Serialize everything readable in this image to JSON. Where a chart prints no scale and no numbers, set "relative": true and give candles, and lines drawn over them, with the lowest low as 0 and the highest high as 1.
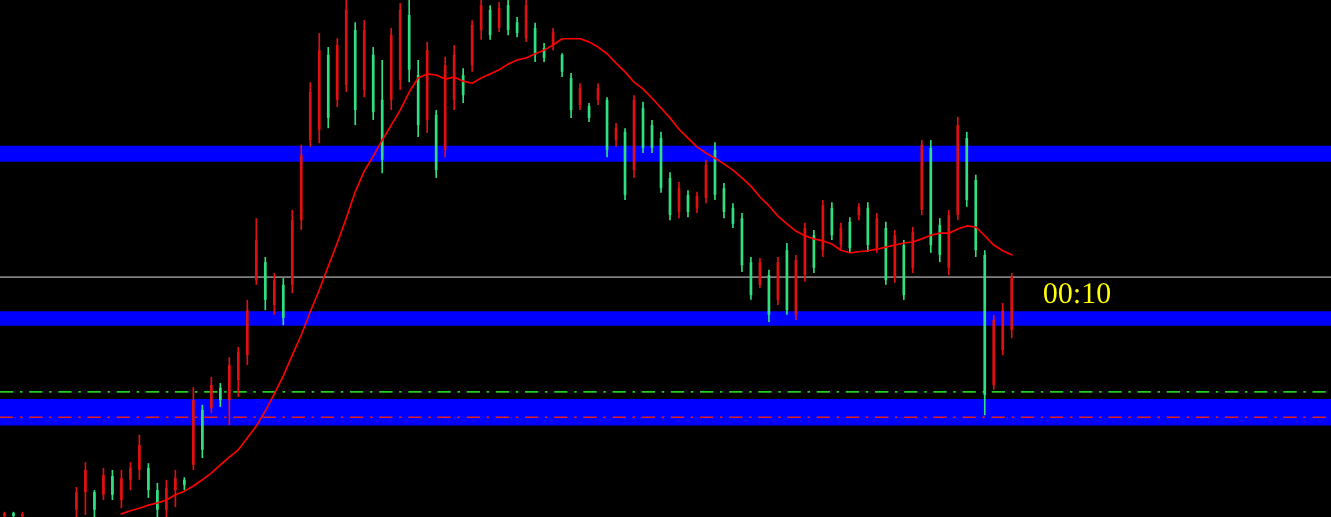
{
  "chart_data": {
    "type": "candlestick",
    "relative": true,
    "categories": [
      null,
      null,
      null,
      null,
      null,
      null,
      null,
      null,
      null,
      null,
      null,
      null,
      null,
      null,
      null,
      null,
      null,
      null,
      null,
      null,
      null,
      null,
      null,
      null,
      null,
      null,
      null,
      null,
      null,
      null,
      null,
      null,
      null,
      null,
      null,
      null,
      null,
      null,
      null,
      null,
      null,
      null,
      null,
      null,
      null,
      null,
      null,
      null,
      null,
      null,
      null,
      null,
      null,
      null,
      null,
      null,
      null,
      null,
      null,
      null,
      null,
      null,
      null,
      null,
      null,
      null,
      null,
      null,
      null,
      null,
      null,
      null,
      null,
      null,
      null,
      null,
      null,
      null,
      null,
      null,
      null,
      null,
      null,
      null,
      null,
      null,
      null,
      null,
      null,
      null,
      null,
      null,
      null,
      null,
      null,
      null,
      null,
      null,
      null,
      null,
      null,
      null,
      null,
      null,
      null,
      null,
      null,
      null,
      null,
      null,
      null,
      null,
      null,
      null,
      null,
      null,
      null,
      null,
      null,
      null,
      null,
      null,
      null,
      null,
      null,
      null,
      null,
      null,
      null,
      null,
      null,
      null,
      null,
      null,
      null,
      null,
      null,
      null,
      null,
      null,
      null,
      null,
      null,
      null,
      null,
      null,
      null,
      null
    ],
    "ohlc": [
      [
        0.002,
        0.01,
        0,
        0.008
      ],
      [
        0.008,
        0.01,
        0,
        0.002
      ],
      [
        0.002,
        0.01,
        0,
        0.006
      ],
      null,
      null,
      null,
      null,
      null,
      [
        0.014,
        0.058,
        0,
        0.048
      ],
      [
        0.048,
        0.106,
        0.004,
        0.091
      ],
      [
        0.048,
        0.052,
        0,
        0.014
      ],
      [
        0.043,
        0.095,
        0.033,
        0.081
      ],
      [
        0.079,
        0.091,
        0.033,
        0.043
      ],
      [
        0.033,
        0.091,
        0.017,
        0.075
      ],
      [
        0.072,
        0.106,
        0.052,
        0.095
      ],
      [
        0.091,
        0.159,
        0.072,
        0.139
      ],
      [
        0.095,
        0.104,
        0.037,
        0.052
      ],
      [
        0.052,
        0.066,
        0,
        0.014
      ],
      [
        0.014,
        0.072,
        0,
        0.056
      ],
      [
        0.052,
        0.091,
        0.019,
        0.075
      ],
      [
        0.072,
        0.077,
        0.052,
        0.062
      ],
      [
        0.101,
        0.251,
        0.091,
        0.226
      ],
      [
        0.207,
        0.217,
        0.114,
        0.13
      ],
      [
        0.211,
        0.271,
        0.201,
        0.255
      ],
      [
        0.25,
        0.259,
        0.213,
        0.226
      ],
      [
        0.226,
        0.309,
        0.178,
        0.294
      ],
      [
        0.265,
        0.329,
        0.232,
        0.319
      ],
      [
        0.313,
        0.42,
        0.294,
        0.4
      ],
      [
        0.458,
        0.578,
        0.449,
        0.536
      ],
      [
        0.493,
        0.503,
        0.4,
        0.42
      ],
      [
        0.41,
        0.472,
        0.391,
        0.458
      ],
      [
        0.449,
        0.462,
        0.371,
        0.385
      ],
      [
        0.449,
        0.594,
        0.433,
        0.574
      ],
      [
        0.574,
        0.72,
        0.555,
        0.7
      ],
      [
        0.729,
        0.841,
        0.716,
        0.822
      ],
      [
        0.749,
        0.936,
        0.723,
        0.903
      ],
      [
        0.894,
        0.909,
        0.752,
        0.772
      ],
      [
        0.807,
        0.926,
        0.793,
        0.913
      ],
      [
        0.836,
        1,
        0.822,
        0.981
      ],
      [
        0.942,
        0.957,
        0.758,
        0.787
      ],
      [
        0.826,
        0.961,
        0.812,
        0.942
      ],
      [
        0.894,
        0.909,
        0.768,
        0.783
      ],
      [
        0.807,
        0.884,
        0.665,
        0.691
      ],
      [
        0.807,
        0.946,
        0.787,
        0.932
      ],
      [
        0.845,
        0.994,
        0.826,
        0.981
      ],
      [
        0.971,
        1,
        0.841,
        0.865
      ],
      [
        0.855,
        0.884,
        0.735,
        0.758
      ],
      [
        0.768,
        0.919,
        0.743,
        0.903
      ],
      [
        0.778,
        0.787,
        0.656,
        0.671
      ],
      [
        0.71,
        0.89,
        0.696,
        0.874
      ],
      [
        0.807,
        0.913,
        0.787,
        0.894
      ],
      [
        0.855,
        0.868,
        0.801,
        0.816
      ],
      [
        0.874,
        0.961,
        0.861,
        0.952
      ],
      [
        0.942,
        1,
        0.923,
        0.99
      ],
      [
        0.981,
        0.99,
        0.923,
        0.932
      ],
      [
        0.946,
        0.996,
        0.938,
        0.985
      ],
      [
        0.99,
        1,
        0.932,
        0.942
      ],
      [
        0.957,
        0.967,
        0.928,
        0.936
      ],
      [
        0.926,
        1,
        0.919,
        0.99
      ],
      [
        0.946,
        0.956,
        0.88,
        0.894
      ],
      [
        0.907,
        0.917,
        0.88,
        0.888
      ],
      [
        0.913,
        0.946,
        0.903,
        0.938
      ],
      [
        0.894,
        0.897,
        0.851,
        0.861
      ],
      [
        0.849,
        0.859,
        0.772,
        0.787
      ],
      [
        0.797,
        0.839,
        0.787,
        0.83
      ],
      [
        0.795,
        0.801,
        0.764,
        0.772
      ],
      [
        0.807,
        0.839,
        0.797,
        0.83
      ],
      [
        0.807,
        0.812,
        0.696,
        0.71
      ],
      [
        0.729,
        0.762,
        0.716,
        0.752
      ],
      [
        0.745,
        0.752,
        0.613,
        0.623
      ],
      [
        0.671,
        0.816,
        0.656,
        0.807
      ],
      [
        0.791,
        0.803,
        0.704,
        0.714
      ],
      [
        0.758,
        0.768,
        0.704,
        0.714
      ],
      [
        0.733,
        0.745,
        0.627,
        0.636
      ],
      [
        0.656,
        0.667,
        0.574,
        0.584
      ],
      [
        0.59,
        0.648,
        0.578,
        0.636
      ],
      [
        0.623,
        0.632,
        0.58,
        0.59
      ],
      [
        0.598,
        0.629,
        0.588,
        0.621
      ],
      [
        0.617,
        0.691,
        0.607,
        0.681
      ],
      [
        0.71,
        0.725,
        0.613,
        0.623
      ],
      [
        0.636,
        0.646,
        0.578,
        0.59
      ],
      [
        0.598,
        0.607,
        0.559,
        0.567
      ],
      [
        0.578,
        0.588,
        0.474,
        0.487
      ],
      [
        0.493,
        0.503,
        0.42,
        0.429
      ],
      [
        0.449,
        0.501,
        0.443,
        0.493
      ],
      [
        0.468,
        0.478,
        0.377,
        0.391
      ],
      [
        0.42,
        0.503,
        0.41,
        0.493
      ],
      [
        0.516,
        0.53,
        0.391,
        0.4
      ],
      [
        0.391,
        0.507,
        0.381,
        0.497
      ],
      [
        0.468,
        0.569,
        0.455,
        0.559
      ],
      [
        0.545,
        0.555,
        0.472,
        0.482
      ],
      [
        0.516,
        0.613,
        0.503,
        0.603
      ],
      [
        0.598,
        0.609,
        0.536,
        0.545
      ],
      [
        0.526,
        0.569,
        0.516,
        0.559
      ],
      [
        0.571,
        0.58,
        0.511,
        0.52
      ],
      [
        0.584,
        0.607,
        0.574,
        0.6
      ],
      [
        0.598,
        0.609,
        0.513,
        0.526
      ],
      [
        0.52,
        0.588,
        0.511,
        0.578
      ],
      [
        0.559,
        0.571,
        0.449,
        0.458
      ],
      [
        0.462,
        0.555,
        0.453,
        0.545
      ],
      [
        0.526,
        0.536,
        0.42,
        0.429
      ],
      [
        0.482,
        0.561,
        0.472,
        0.551
      ],
      [
        0.594,
        0.729,
        0.584,
        0.72
      ],
      [
        0.714,
        0.729,
        0.511,
        0.526
      ],
      [
        0.565,
        0.578,
        0.493,
        0.507
      ],
      [
        0.482,
        0.594,
        0.468,
        0.584
      ],
      [
        0.584,
        0.774,
        0.574,
        0.758
      ],
      [
        0.733,
        0.745,
        0.6,
        0.613
      ],
      [
        0.652,
        0.662,
        0.503,
        0.516
      ],
      [
        0.507,
        0.516,
        0.197,
        0.236
      ],
      [
        0.255,
        0.391,
        0.246,
        0.381
      ],
      [
        0.323,
        0.414,
        0.313,
        0.4
      ],
      [
        0.362,
        0.472,
        0.346,
        0.464
      ],
      null,
      null,
      null,
      null,
      null,
      null,
      null,
      null,
      null,
      null,
      null,
      null,
      null,
      null,
      null,
      null,
      null,
      null,
      null,
      null,
      null,
      null,
      null,
      null,
      null,
      null,
      null,
      null,
      null,
      null,
      null,
      null,
      null,
      null,
      null
    ],
    "colors": [
      "#e01010",
      "#30e080",
      "#e01010",
      null,
      null,
      null,
      null,
      null,
      "#e01010",
      "#e01010",
      "#30e080",
      "#e01010",
      "#30e080",
      "#e01010",
      "#e01010",
      "#e01010",
      "#30e080",
      "#30e080",
      "#e01010",
      "#e01010",
      "#30e080",
      "#e01010",
      "#30e080",
      "#e01010",
      "#30e080",
      "#e01010",
      "#e01010",
      "#e01010",
      "#e01010",
      "#30e080",
      "#e01010",
      "#30e080",
      "#e01010",
      "#e01010",
      "#e01010",
      "#e01010",
      "#30e080",
      "#e01010",
      "#e01010",
      "#30e080",
      "#e01010",
      "#30e080",
      "#30e080",
      "#e01010",
      "#e01010",
      "#30e080",
      "#30e080",
      "#e01010",
      "#30e080",
      "#e01010",
      "#e01010",
      "#30e080",
      "#e01010",
      "#e01010",
      "#30e080",
      "#e01010",
      "#30e080",
      "#30e080",
      "#e01010",
      "#30e080",
      "#30e080",
      "#e01010",
      "#30e080",
      "#30e080",
      "#e01010",
      "#30e080",
      "#e01010",
      "#30e080",
      "#e01010",
      "#30e080",
      "#e01010",
      "#30e080",
      "#30e080",
      "#30e080",
      "#30e080",
      "#e01010",
      "#30e080",
      "#e01010",
      "#e01010",
      "#30e080",
      "#30e080",
      "#30e080",
      "#30e080",
      "#30e080",
      "#e01010",
      "#30e080",
      "#e01010",
      "#30e080",
      "#e01010",
      "#e01010",
      "#30e080",
      "#e01010",
      "#30e080",
      "#e01010",
      "#30e080",
      "#e01010",
      "#30e080",
      "#e01010",
      "#30e080",
      "#e01010",
      "#30e080",
      "#e01010",
      "#e01010",
      "#30e080",
      "#30e080",
      "#e01010",
      "#e01010",
      "#30e080",
      "#30e080",
      "#30e080",
      "#e01010",
      "#e01010",
      "#e01010",
      null,
      null,
      null,
      null,
      null,
      null,
      null,
      null,
      null,
      null,
      null,
      null,
      null,
      null,
      null,
      null,
      null,
      null,
      null,
      null,
      null,
      null,
      null,
      null,
      null,
      null,
      null,
      null,
      null,
      null,
      null,
      null,
      null,
      null,
      null
    ],
    "series": [
      {
        "type": "line",
        "color": "#ff0000",
        "values": [
          null,
          null,
          null,
          null,
          null,
          null,
          null,
          null,
          null,
          null,
          null,
          null,
          null,
          0.006,
          0.012,
          0.017,
          0.023,
          0.027,
          0.033,
          0.043,
          0.05,
          0.06,
          0.072,
          0.085,
          0.101,
          0.116,
          0.13,
          0.153,
          0.176,
          0.205,
          0.238,
          0.273,
          0.313,
          0.352,
          0.397,
          0.439,
          0.485,
          0.53,
          0.578,
          0.629,
          0.669,
          0.698,
          0.729,
          0.758,
          0.787,
          0.822,
          0.849,
          0.857,
          0.855,
          0.847,
          0.851,
          0.843,
          0.839,
          0.849,
          0.857,
          0.865,
          0.876,
          0.884,
          0.888,
          0.896,
          0.903,
          0.913,
          0.925,
          0.925,
          0.925,
          0.919,
          0.909,
          0.896,
          0.878,
          0.861,
          0.841,
          0.828,
          0.81,
          0.791,
          0.772,
          0.75,
          0.733,
          0.716,
          0.704,
          0.694,
          0.683,
          0.671,
          0.656,
          0.64,
          0.619,
          0.602,
          0.582,
          0.567,
          0.553,
          0.544,
          0.538,
          0.534,
          0.528,
          0.516,
          0.511,
          0.513,
          0.515,
          0.518,
          0.522,
          0.526,
          0.53,
          0.532,
          0.538,
          0.545,
          0.549,
          0.549,
          0.557,
          0.563,
          0.561,
          0.544,
          0.526,
          0.515,
          0.507,
          null,
          null,
          null,
          null,
          null,
          null,
          null,
          null,
          null,
          null,
          null,
          null,
          null,
          null,
          null,
          null,
          null,
          null,
          null,
          null,
          null,
          null,
          null,
          null,
          null,
          null,
          null,
          null,
          null,
          null,
          null,
          null,
          null,
          null,
          null
        ]
      }
    ],
    "bands": [
      {
        "axis": "y",
        "from": 0.687,
        "to": 0.718,
        "color": "#0000ff"
      },
      {
        "axis": "y",
        "from": 0.37,
        "to": 0.398,
        "color": "#0000ff"
      },
      {
        "axis": "y",
        "from": 0.177,
        "to": 0.228,
        "color": "#0000ff"
      }
    ],
    "ref_lines": [
      {
        "axis": "y",
        "value": 0.464,
        "color": "#808080",
        "line_style": "solid"
      },
      {
        "axis": "y",
        "value": 0.242,
        "color": "#22cc22",
        "line_style": "dashdot"
      },
      {
        "axis": "y",
        "value": 0.193,
        "color": "#e02020",
        "line_style": "dashdot"
      }
    ],
    "annotations": [
      "00:10"
    ]
  }
}
